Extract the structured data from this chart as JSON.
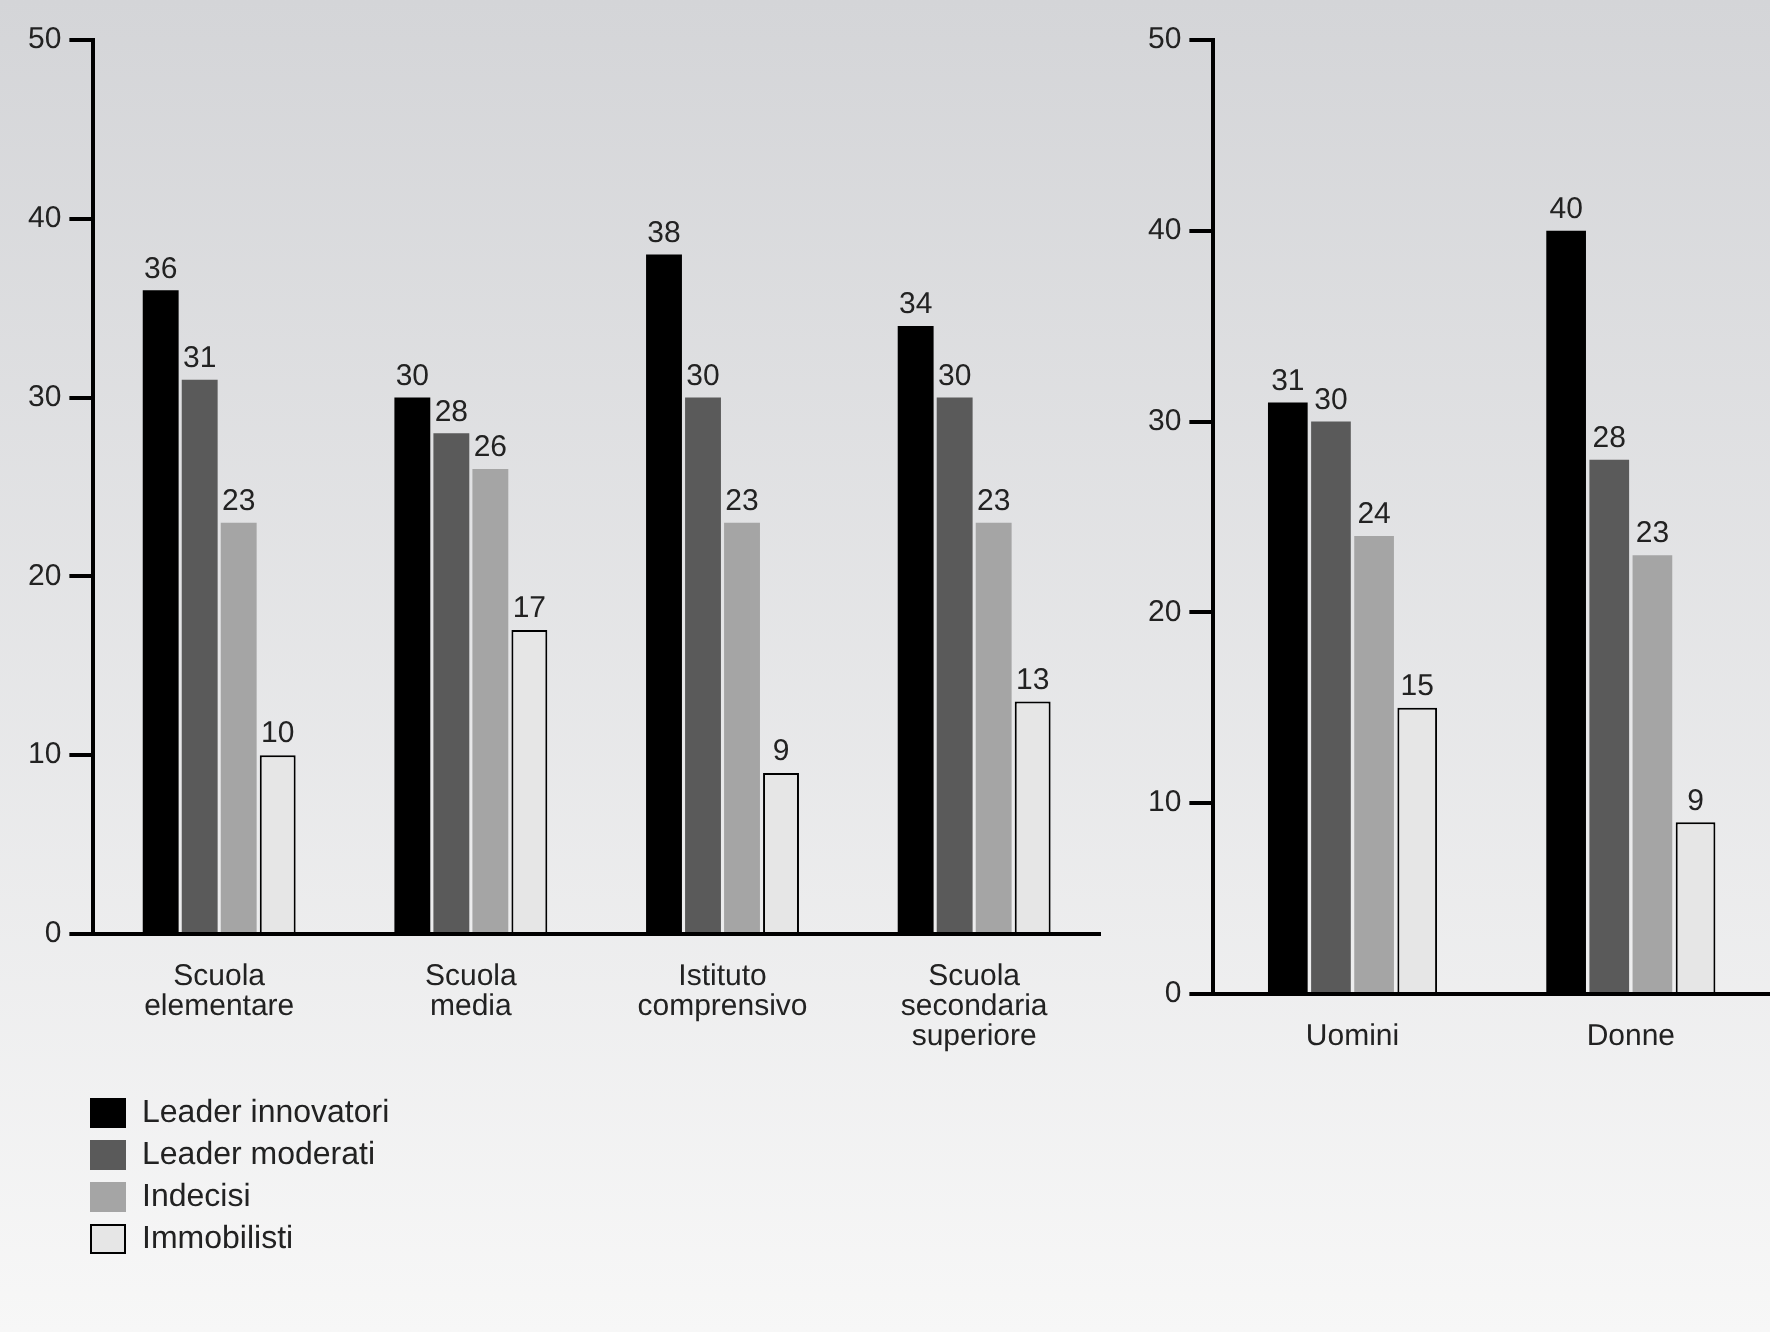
{
  "chart_data": [
    {
      "type": "bar",
      "categories": [
        "Scuola elementare",
        "Scuola media",
        "Istituto comprensivo",
        "Scuola secondaria superiore"
      ],
      "series": [
        {
          "name": "Leader innovatori",
          "color": "#000000",
          "values": [
            36,
            30,
            38,
            34
          ]
        },
        {
          "name": "Leader moderati",
          "color": "#5a5a5a",
          "values": [
            31,
            28,
            30,
            30
          ]
        },
        {
          "name": "Indecisi",
          "color": "#a5a5a5",
          "values": [
            23,
            26,
            23,
            23
          ]
        },
        {
          "name": "Immobilisti",
          "color": "#e6e6e6",
          "values": [
            10,
            17,
            9,
            13
          ]
        }
      ],
      "ylim": [
        0,
        50
      ],
      "yticks": [
        0,
        10,
        20,
        30,
        40,
        50
      ],
      "grid": false,
      "legend": "bottom left",
      "data_labels": true
    },
    {
      "type": "bar",
      "categories": [
        "Uomini",
        "Donne"
      ],
      "series": [
        {
          "color": "#000000",
          "values": [
            31,
            40
          ]
        },
        {
          "color": "#5a5a5a",
          "values": [
            30,
            28
          ]
        },
        {
          "color": "#a5a5a5",
          "values": [
            24,
            23
          ]
        },
        {
          "color": "#e6e6e6",
          "values": [
            15,
            9
          ]
        }
      ],
      "ylim": [
        0,
        50
      ],
      "yticks": [
        0,
        10,
        20,
        30,
        40,
        50
      ],
      "grid": false,
      "legend": false,
      "data_labels": true
    }
  ]
}
